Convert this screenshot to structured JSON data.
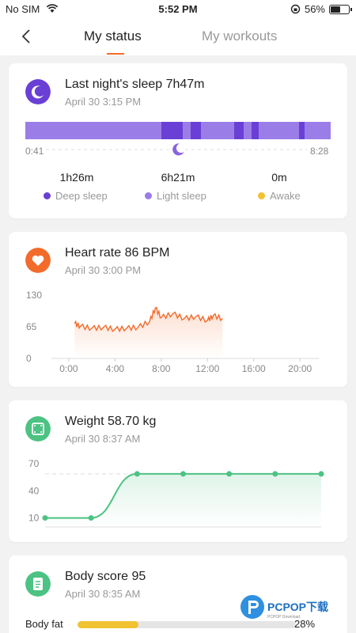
{
  "statusbar": {
    "carrier": "No SIM",
    "time": "5:52 PM",
    "battery": "56%",
    "battery_level": 0.56
  },
  "nav": {
    "tabs": [
      "My status",
      "My workouts"
    ],
    "active_tab": 0
  },
  "sleep": {
    "title": "Last night's sleep 7h47m",
    "date": "April 30 3:15 PM",
    "start": "0:41",
    "end": "8:28",
    "stats": [
      {
        "value": "1h26m",
        "label": "Deep sleep",
        "color": "#6a3fd6"
      },
      {
        "value": "6h21m",
        "label": "Light sleep",
        "color": "#9b7de8"
      },
      {
        "value": "0m",
        "label": "Awake",
        "color": "#f1c232"
      }
    ]
  },
  "heart": {
    "title": "Heart rate 86  BPM",
    "date": "April 30 3:00 PM",
    "color": "#f26b2b"
  },
  "weight": {
    "title": "Weight 58.70 kg",
    "date": "April 30 8:37 AM",
    "color": "#4cc283"
  },
  "body_score": {
    "title": "Body score 95",
    "date": "April 30 8:35 AM",
    "metric_label": "Body fat",
    "metric_value": "28%",
    "metric_level": 0.28
  },
  "chart_data": [
    {
      "type": "line",
      "series": [
        {
          "x": [
            0.5,
            1,
            2,
            3,
            4,
            5,
            6,
            7,
            7.5,
            8,
            9,
            10,
            11,
            12,
            12.5,
            13.3
          ],
          "y": [
            72,
            66,
            62,
            64,
            60,
            62,
            64,
            76,
            104,
            84,
            92,
            82,
            86,
            78,
            88,
            82
          ]
        }
      ],
      "x_ticks": [
        "0:00",
        "4:00",
        "8:00",
        "12:00",
        "16:00",
        "20:00"
      ],
      "x_tick_values": [
        0,
        4,
        8,
        12,
        16,
        20
      ],
      "y_ticks": [
        "0",
        "65",
        "130"
      ],
      "y_tick_values": [
        0,
        65,
        130
      ],
      "xlim": [
        -1.5,
        23
      ],
      "ylim": [
        0,
        130
      ]
    },
    {
      "type": "line",
      "series": [
        {
          "y": [
            10,
            10,
            58.7,
            58.7,
            58.7,
            58.7,
            58.7
          ]
        }
      ],
      "y_ticks": [
        "10",
        "40",
        "70"
      ],
      "y_tick_values": [
        10,
        40,
        70
      ],
      "ylim": [
        0,
        70
      ]
    }
  ]
}
